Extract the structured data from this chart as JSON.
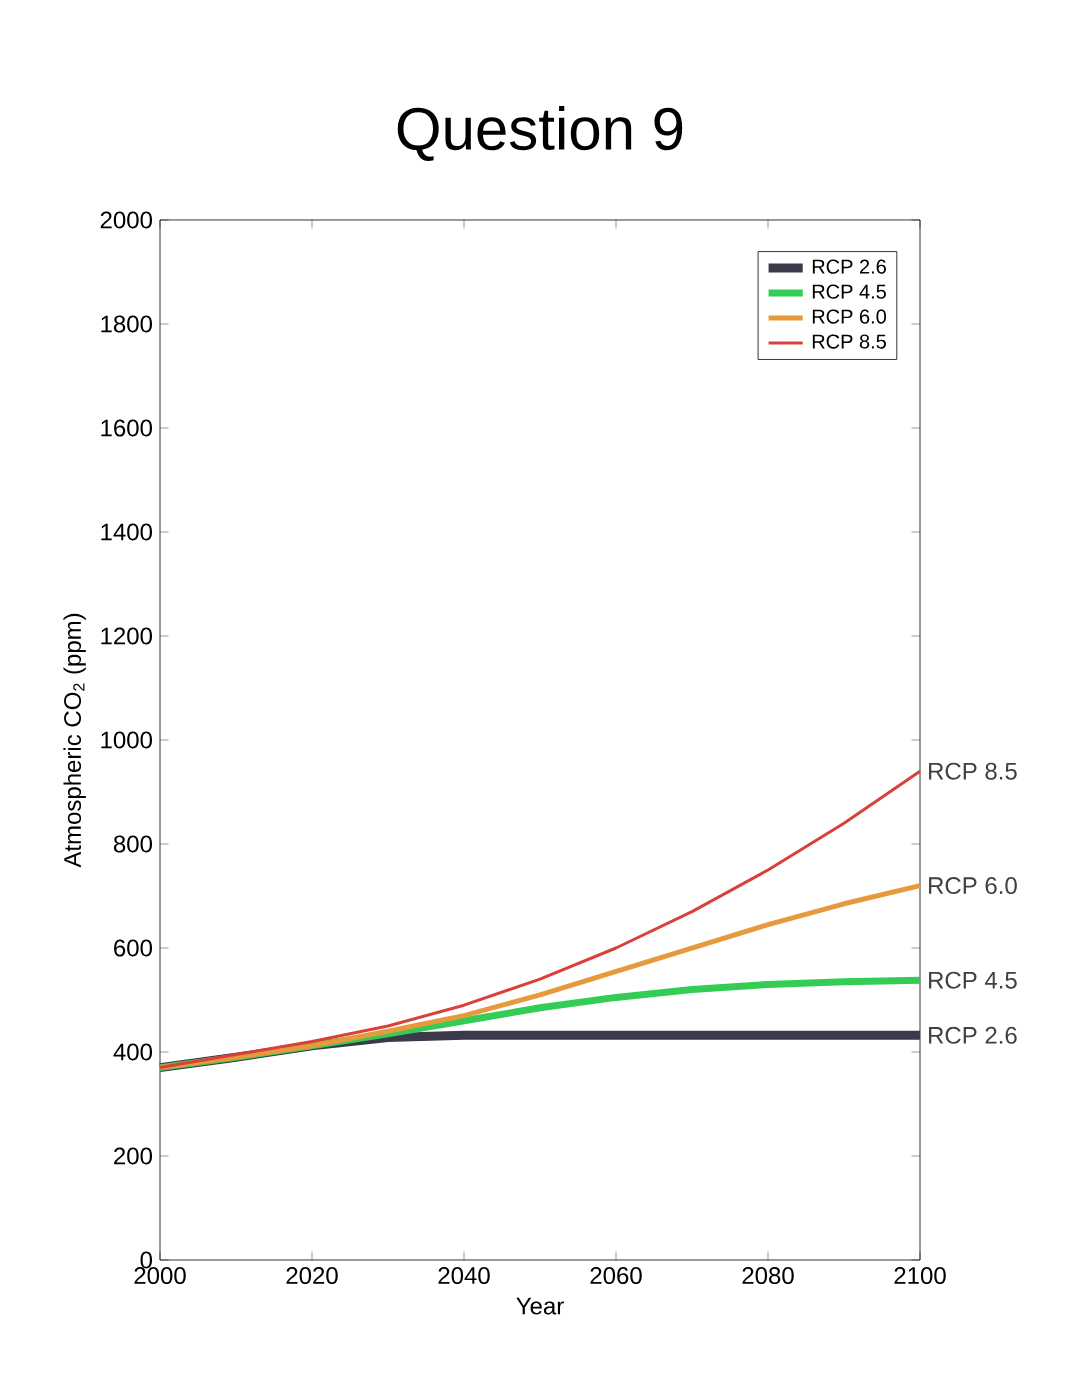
{
  "chart_data": {
    "type": "line",
    "title": "Question 9",
    "xlabel": "Year",
    "ylabel": "Atmospheric CO$_{2}$ (ppm)",
    "x": [
      2000,
      2010,
      2020,
      2030,
      2040,
      2050,
      2060,
      2070,
      2080,
      2090,
      2100
    ],
    "series": [
      {
        "name": "RCP 2.6",
        "color": "#3a3a4a",
        "values": [
          370,
          390,
          412,
          428,
          432,
          432,
          432,
          432,
          432,
          432,
          432
        ]
      },
      {
        "name": "RCP 4.5",
        "color": "#33cc55",
        "values": [
          370,
          390,
          412,
          435,
          460,
          485,
          505,
          520,
          530,
          535,
          538
        ]
      },
      {
        "name": "RCP 6.0",
        "color": "#e69a3c",
        "values": [
          370,
          390,
          412,
          440,
          470,
          510,
          555,
          600,
          645,
          685,
          720
        ]
      },
      {
        "name": "RCP 8.5",
        "color": "#d9403a",
        "values": [
          370,
          395,
          420,
          450,
          490,
          540,
          600,
          670,
          750,
          840,
          940
        ]
      }
    ],
    "xlim": [
      2000,
      2100
    ],
    "xticks": [
      2000,
      2020,
      2040,
      2060,
      2080,
      2100
    ],
    "ylim": [
      0,
      2000
    ],
    "yticks": [
      0,
      200,
      400,
      600,
      800,
      1000,
      1200,
      1400,
      1600,
      1800,
      2000
    ],
    "legend": "top right",
    "grid": false,
    "marker": "none",
    "line_style": "solid"
  }
}
